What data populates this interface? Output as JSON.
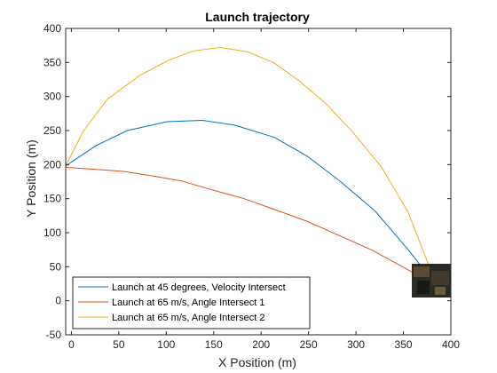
{
  "chart_data": {
    "type": "line",
    "title": "Launch trajectory",
    "xlabel": "X Position (m)",
    "ylabel": "Y Position (m)",
    "xlim": [
      -6,
      400
    ],
    "ylim": [
      -50,
      400
    ],
    "xticks": [
      0,
      50,
      100,
      150,
      200,
      250,
      300,
      350,
      400
    ],
    "yticks": [
      -50,
      0,
      50,
      100,
      150,
      200,
      250,
      300,
      350,
      400
    ],
    "grid": false,
    "legend_position": "bottom-left",
    "series": [
      {
        "name": "Launch at 45 degrees, Velocity Intersect",
        "color": "#0072BD",
        "x": [
          -6,
          26,
          59,
          101,
          138,
          172,
          214,
          248,
          282,
          320,
          355,
          385
        ],
        "y": [
          198,
          228,
          250,
          263,
          265,
          258,
          240,
          213,
          177,
          132,
          75,
          22
        ]
      },
      {
        "name": "Launch at 65 m/s, Angle Intersect 1",
        "color": "#D95319",
        "x": [
          -6,
          26,
          55,
          87,
          116,
          148,
          182,
          214,
          248,
          282,
          316,
          349,
          385
        ],
        "y": [
          196,
          193,
          190,
          183,
          176,
          163,
          150,
          134,
          117,
          96,
          75,
          50,
          22
        ]
      },
      {
        "name": "Launch at 65 m/s, Angle Intersect 2",
        "color": "#EDB120",
        "x": [
          -6,
          13,
          38,
          71,
          102,
          129,
          157,
          185,
          213,
          240,
          268,
          297,
          327,
          355,
          385
        ],
        "y": [
          198,
          250,
          296,
          330,
          353,
          367,
          372,
          366,
          350,
          323,
          290,
          247,
          196,
          130,
          22
        ]
      }
    ]
  },
  "icons": {
    "overlay_image": "photo-thumbnail"
  }
}
